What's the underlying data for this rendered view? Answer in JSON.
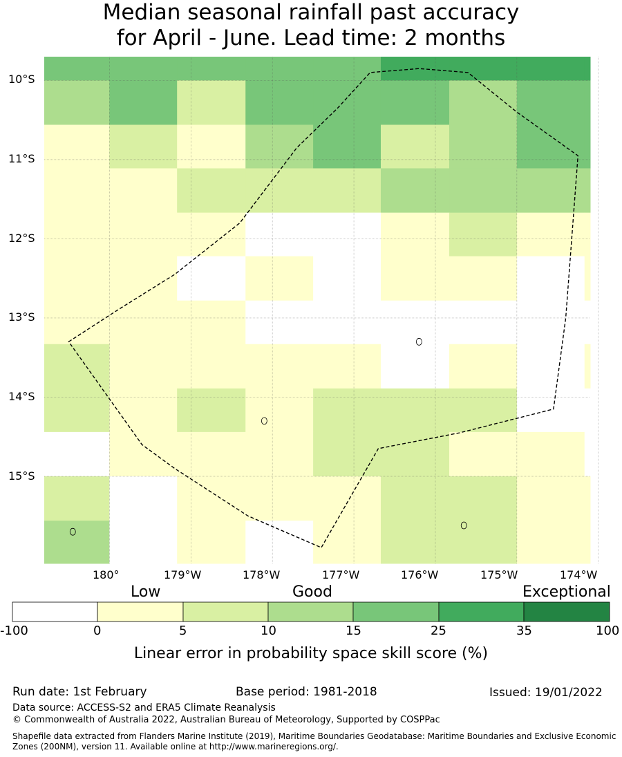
{
  "title": {
    "line1": "Median seasonal rainfall past accuracy",
    "line2": "for April - June. Lead time: 2 months"
  },
  "map": {
    "lat_labels": [
      "10°S",
      "11°S",
      "12°S",
      "13°S",
      "14°S",
      "15°S"
    ],
    "lon_labels": [
      "180°",
      "179°W",
      "178°W",
      "177°W",
      "176°W",
      "175°W",
      "174°W"
    ],
    "extent": {
      "lon_min": -180.8,
      "lon_max": -174.1,
      "lat_top": -9.7,
      "lat_bottom": -16.1
    },
    "grid": {
      "lon_edges": [
        -180.8,
        -180.0,
        -179.17,
        -178.33,
        -177.5,
        -176.67,
        -175.83,
        -175.0,
        -174.17,
        -174.1
      ],
      "lat_edges": [
        -9.7,
        -10.0,
        -10.56,
        -11.11,
        -11.67,
        -12.22,
        -12.78,
        -13.33,
        -13.89,
        -14.44,
        -15.0,
        -15.56,
        -16.1
      ],
      "category_rows": [
        [
          4,
          4,
          4,
          4,
          4,
          5,
          5,
          5,
          5
        ],
        [
          3,
          4,
          2,
          4,
          4,
          4,
          3,
          4,
          4
        ],
        [
          1,
          2,
          1,
          3,
          4,
          2,
          3,
          4,
          4
        ],
        [
          1,
          1,
          2,
          2,
          2,
          3,
          3,
          3,
          3
        ],
        [
          1,
          1,
          1,
          0,
          0,
          1,
          2,
          1,
          1
        ],
        [
          1,
          1,
          0,
          1,
          0,
          1,
          1,
          0,
          1
        ],
        [
          1,
          1,
          1,
          0,
          0,
          0,
          0,
          0,
          0
        ],
        [
          2,
          1,
          1,
          1,
          1,
          0,
          1,
          0,
          1
        ],
        [
          2,
          1,
          2,
          1,
          2,
          2,
          2,
          0,
          0
        ],
        [
          0,
          1,
          1,
          1,
          2,
          2,
          1,
          1,
          0
        ],
        [
          2,
          0,
          1,
          1,
          1,
          2,
          2,
          1,
          1
        ],
        [
          3,
          0,
          1,
          0,
          1,
          2,
          2,
          1,
          1
        ]
      ]
    },
    "boundary": [
      [
        -180.5,
        -13.3
      ],
      [
        -179.9,
        -12.9
      ],
      [
        -179.2,
        -12.45
      ],
      [
        -178.4,
        -11.8
      ],
      [
        -177.7,
        -10.85
      ],
      [
        -177.2,
        -10.35
      ],
      [
        -176.8,
        -9.9
      ],
      [
        -176.2,
        -9.85
      ],
      [
        -175.6,
        -9.9
      ],
      [
        -175.0,
        -10.4
      ],
      [
        -174.25,
        -10.95
      ],
      [
        -174.4,
        -13.0
      ],
      [
        -174.55,
        -14.15
      ],
      [
        -175.7,
        -14.45
      ],
      [
        -176.7,
        -14.65
      ],
      [
        -177.4,
        -15.9
      ],
      [
        -178.3,
        -15.5
      ],
      [
        -179.2,
        -14.9
      ],
      [
        -179.6,
        -14.6
      ],
      [
        -180.5,
        -13.3
      ]
    ],
    "islands": [
      {
        "lon": -176.2,
        "lat": -13.3
      },
      {
        "lon": -178.1,
        "lat": -14.3
      },
      {
        "lon": -175.65,
        "lat": -15.62
      },
      {
        "lon": -180.45,
        "lat": -15.7
      }
    ]
  },
  "legend": {
    "categories": [
      "Low",
      "Good",
      "Exceptional"
    ],
    "ticks": [
      "-100",
      "0",
      "5",
      "10",
      "15",
      "25",
      "35",
      "100"
    ],
    "colors": [
      "#ffffff",
      "#ffffcc",
      "#d9f0a3",
      "#addd8e",
      "#78c679",
      "#41ab5d",
      "#238443"
    ],
    "title": "Linear error in probability space skill score (%)"
  },
  "footer": {
    "run_date": "Run date: 1st February",
    "base_period": "Base period: 1981-2018",
    "issued": "Issued: 19/01/2022",
    "data_source": "Data source: ACCESS-S2 and ERA5 Climate Reanalysis",
    "copyright": "© Commonwealth of Australia 2022, Australian Bureau of Meteorology, Supported by COSPPac",
    "shapefile": "Shapefile data extracted from Flanders Marine Institute (2019), Maritime Boundaries Geodatabase: Maritime Boundaries and Exclusive Economic Zones (200NM), version 11. Available online at http://www.marineregions.org/."
  }
}
